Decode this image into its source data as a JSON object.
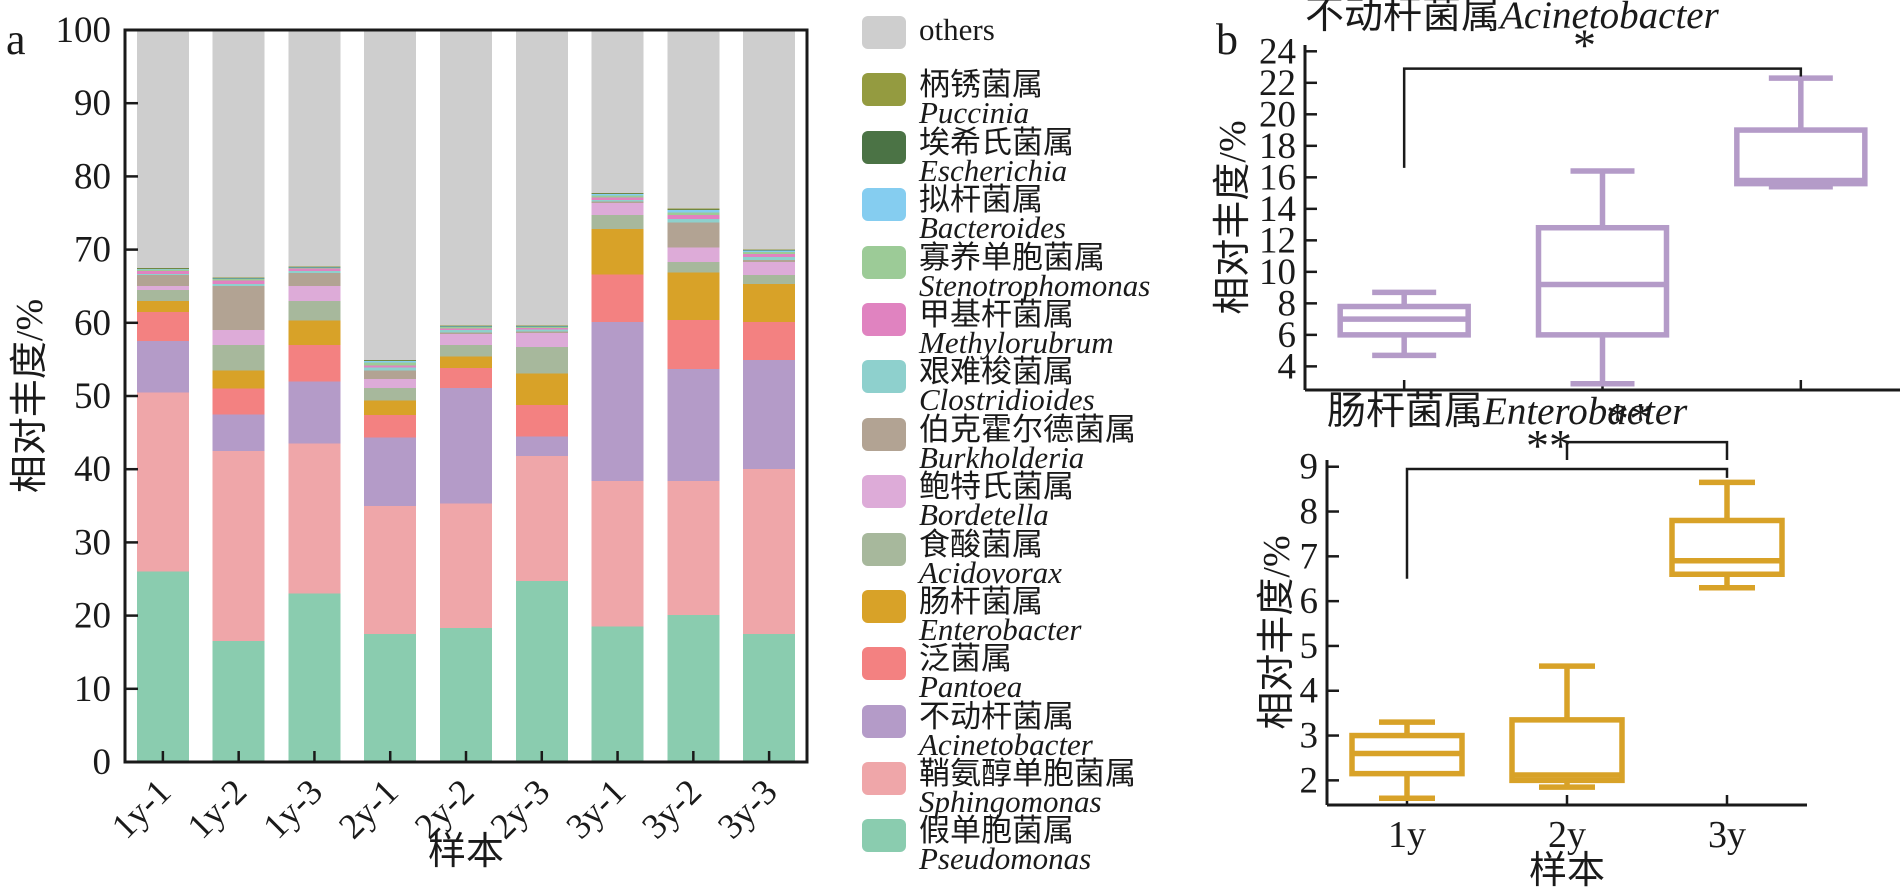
{
  "panels": {
    "a_label": "a",
    "b_label": "b"
  },
  "legend": {
    "items": [
      {
        "cn": "",
        "latin": "others",
        "italic": false,
        "color": "#cecece"
      },
      {
        "cn": "柄锈菌属",
        "latin": "Puccinia",
        "italic": true,
        "color": "#949b40"
      },
      {
        "cn": "埃希氏菌属",
        "latin": "Escherichia",
        "italic": true,
        "color": "#4b7345"
      },
      {
        "cn": "拟杆菌属",
        "latin": "Bacteroides",
        "italic": true,
        "color": "#85cdf0"
      },
      {
        "cn": "寡养单胞菌属",
        "latin": "Stenotrophomonas",
        "italic": true,
        "color": "#9ccb97"
      },
      {
        "cn": "甲基杆菌属",
        "latin": "Methylorubrum",
        "italic": true,
        "color": "#e083c0"
      },
      {
        "cn": "艰难梭菌属",
        "latin": "Clostridioides",
        "italic": true,
        "color": "#8ed0cd"
      },
      {
        "cn": "伯克霍尔德菌属",
        "latin": "Burkholderia",
        "italic": true,
        "color": "#b2a393"
      },
      {
        "cn": "鲍特氏菌属",
        "latin": "Bordetella",
        "italic": true,
        "color": "#ddabd8"
      },
      {
        "cn": "食酸菌属",
        "latin": "Acidovorax",
        "italic": true,
        "color": "#a7b89c"
      },
      {
        "cn": "肠杆菌属",
        "latin": "Enterobacter",
        "italic": true,
        "color": "#d8a228"
      },
      {
        "cn": "泛菌属",
        "latin": "Pantoea",
        "italic": true,
        "color": "#f38181"
      },
      {
        "cn": "不动杆菌属",
        "latin": "Acinetobacter",
        "italic": true,
        "color": "#b49bc8"
      },
      {
        "cn": "鞘氨醇单胞菌属",
        "latin": "Sphingomonas",
        "italic": true,
        "color": "#efa6a9"
      },
      {
        "cn": "假单胞菌属",
        "latin": "Pseudomonas",
        "italic": true,
        "color": "#8accaf"
      }
    ]
  },
  "chart_data": [
    {
      "id": "stacked_bars",
      "type": "bar",
      "stacked": true,
      "title": "",
      "ylabel": "相对丰度/%",
      "xlabel": "样本",
      "ylim": [
        0,
        100
      ],
      "yticks": [
        0,
        10,
        20,
        30,
        40,
        50,
        60,
        70,
        80,
        90,
        100
      ],
      "categories": [
        "1y-1",
        "1y-2",
        "1y-3",
        "2y-1",
        "2y-2",
        "2y-3",
        "3y-1",
        "3y-2",
        "3y-3"
      ],
      "series": [
        {
          "name": "Pseudomonas",
          "name_cn": "假单胞菌属",
          "color": "#8accaf",
          "values": [
            26,
            16.5,
            23,
            17.5,
            18.3,
            24.7,
            18.5,
            20.1,
            17.5
          ]
        },
        {
          "name": "Sphingomonas",
          "name_cn": "鞘氨醇单胞菌属",
          "color": "#efa6a9",
          "values": [
            24.5,
            26,
            20.5,
            17.5,
            17,
            17.1,
            19.9,
            18.3,
            22.5
          ]
        },
        {
          "name": "Acinetobacter",
          "name_cn": "不动杆菌属",
          "color": "#b49bc8",
          "values": [
            7,
            5,
            8.5,
            9.3,
            15.8,
            2.7,
            21.7,
            15.3,
            14.9
          ]
        },
        {
          "name": "Pantoea",
          "name_cn": "泛菌属",
          "color": "#f38181",
          "values": [
            4,
            3.5,
            5,
            3.1,
            2.7,
            4.3,
            6.5,
            6.7,
            5.2
          ]
        },
        {
          "name": "Enterobacter",
          "name_cn": "肠杆菌属",
          "color": "#d8a228",
          "values": [
            1.5,
            2.5,
            3.3,
            2,
            1.6,
            4.3,
            6.2,
            6.5,
            5.2
          ]
        },
        {
          "name": "Acidovorax",
          "name_cn": "食酸菌属",
          "color": "#a7b89c",
          "values": [
            1.5,
            3.5,
            2.7,
            1.7,
            1.6,
            3.6,
            1.9,
            1.4,
            1.2
          ]
        },
        {
          "name": "Bordetella",
          "name_cn": "鲍特氏菌属",
          "color": "#ddabd8",
          "values": [
            0.5,
            2,
            2,
            1.2,
            1.5,
            1.9,
            1.7,
            2,
            1.8
          ]
        },
        {
          "name": "Burkholderia",
          "name_cn": "伯克霍尔德菌属",
          "color": "#b2a393",
          "values": [
            1.5,
            6,
            1.8,
            1.2,
            0.2,
            0.2,
            0.2,
            3.4,
            0.3
          ]
        },
        {
          "name": "Clostridioides",
          "name_cn": "艰难梭菌属",
          "color": "#8ed0cd",
          "values": [
            0.2,
            0.3,
            0.3,
            0.4,
            0.3,
            0.3,
            0.2,
            0.5,
            0.4
          ]
        },
        {
          "name": "Methylorubrum",
          "name_cn": "甲基杆菌属",
          "color": "#e083c0",
          "values": [
            0.4,
            0.5,
            0.3,
            0.3,
            0.2,
            0.2,
            0.3,
            0.5,
            0.4
          ]
        },
        {
          "name": "Stenotrophomonas",
          "name_cn": "寡养单胞菌属",
          "color": "#9ccb97",
          "values": [
            0.15,
            0.2,
            0.1,
            0.4,
            0.2,
            0.15,
            0.3,
            0.4,
            0.3
          ]
        },
        {
          "name": "Bacteroides",
          "name_cn": "拟杆菌属",
          "color": "#85cdf0",
          "values": [
            0.15,
            0.1,
            0.1,
            0.2,
            0.1,
            0.1,
            0.2,
            0.3,
            0.2
          ]
        },
        {
          "name": "Escherichia",
          "name_cn": "埃希氏菌属",
          "color": "#4b7345",
          "values": [
            0.05,
            0.05,
            0.05,
            0.05,
            0.05,
            0.03,
            0.05,
            0.1,
            0.05
          ]
        },
        {
          "name": "Puccinia",
          "name_cn": "柄锈菌属",
          "color": "#949b40",
          "values": [
            0.05,
            0.05,
            0.05,
            0.05,
            0.05,
            0.02,
            0.05,
            0.1,
            0.05
          ]
        },
        {
          "name": "others",
          "name_cn": "",
          "color": "#cecece",
          "values": [
            32.5,
            33.8,
            32.3,
            45.1,
            40.4,
            40.4,
            22.3,
            24.4,
            30
          ]
        }
      ]
    },
    {
      "id": "box_acinetobacter",
      "type": "box",
      "title_cn": "不动杆菌属",
      "title_latin": "Acinetobacter",
      "ylabel": "相对丰度/%",
      "xlabel": "",
      "color": "#b49bc8",
      "ylim": [
        2.5,
        24.4
      ],
      "yticks": [
        4,
        6,
        8,
        10,
        12,
        14,
        16,
        18,
        20,
        22,
        24
      ],
      "categories": [
        "1y",
        "2y",
        "3y"
      ],
      "show_xticklabels": false,
      "boxes": [
        {
          "label": "1y",
          "whisker_low": 4.7,
          "q1": 6.0,
          "median": 7.0,
          "q3": 7.8,
          "whisker_high": 8.7
        },
        {
          "label": "2y",
          "whisker_low": 2.9,
          "q1": 6.0,
          "median": 9.2,
          "q3": 12.8,
          "whisker_high": 16.4
        },
        {
          "label": "3y",
          "whisker_low": 15.4,
          "q1": 15.6,
          "median": 15.8,
          "q3": 19.0,
          "whisker_high": 22.3
        }
      ],
      "significance": [
        {
          "from": "1y",
          "to": "3y",
          "label": "*",
          "bar_y": 22.9,
          "drop_from": 16.6,
          "drop_to": 22.4
        }
      ]
    },
    {
      "id": "box_enterobacter",
      "type": "box",
      "title_cn": "肠杆菌属",
      "title_latin": "Enterobacter",
      "ylabel": "相对丰度/%",
      "xlabel": "样本",
      "color": "#d8a228",
      "ylim": [
        1.45,
        9.15
      ],
      "yticks": [
        2,
        3,
        4,
        5,
        6,
        7,
        8,
        9
      ],
      "categories": [
        "1y",
        "2y",
        "3y"
      ],
      "show_xticklabels": true,
      "boxes": [
        {
          "label": "1y",
          "whisker_low": 1.6,
          "q1": 2.15,
          "median": 2.6,
          "q3": 3.0,
          "whisker_high": 3.3
        },
        {
          "label": "2y",
          "whisker_low": 1.85,
          "q1": 2.0,
          "median": 2.12,
          "q3": 3.35,
          "whisker_high": 4.55
        },
        {
          "label": "3y",
          "whisker_low": 6.3,
          "q1": 6.6,
          "median": 6.9,
          "q3": 7.8,
          "whisker_high": 8.65
        }
      ],
      "significance": [
        {
          "from": "2y",
          "to": "3y",
          "label": "**",
          "bar_y": 9.55,
          "drop_from": 9.15,
          "drop_to": 9.15
        },
        {
          "from": "1y",
          "to": "3y",
          "label": "**",
          "bar_y": 8.95,
          "drop_from": 6.5,
          "drop_to": 8.75
        }
      ]
    }
  ]
}
